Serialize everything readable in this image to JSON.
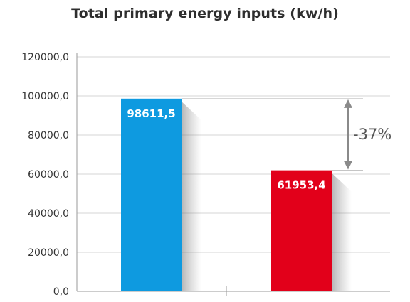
{
  "chart_data": {
    "type": "bar",
    "title": "Total primary energy inputs (kw/h)",
    "categories": [
      "",
      ""
    ],
    "values": [
      98611.5,
      61953.4
    ],
    "value_labels": [
      "98611,5",
      "61953,4"
    ],
    "colors": [
      "#0e9ae0",
      "#e2001a"
    ],
    "ylim": [
      0,
      120000
    ],
    "yticks": [
      0,
      20000,
      40000,
      60000,
      80000,
      100000,
      120000
    ],
    "ytick_labels": [
      "0,0",
      "20000,0",
      "40000,0",
      "60000,0",
      "80000,0",
      "100000,0",
      "120000,0"
    ],
    "grid": "horizontal",
    "annotation": {
      "text": "-37%",
      "from": 98611.5,
      "to": 61953.4
    },
    "xlabel": "",
    "ylabel": ""
  }
}
